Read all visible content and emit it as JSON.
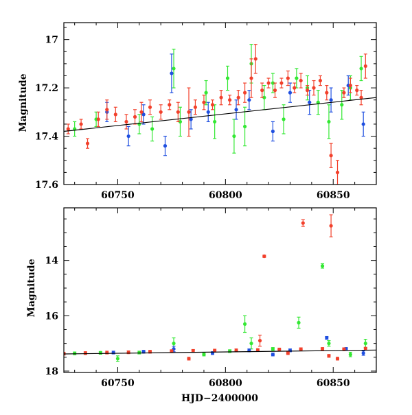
{
  "colors": {
    "green": "#33e833",
    "blue": "#1f4fe0",
    "red": "#f2402b",
    "model": "#000000"
  },
  "chart_data": [
    {
      "type": "scatter",
      "panel": "top",
      "xlabel": "",
      "ylabel": "Magnitude",
      "xlim": [
        60725,
        60870
      ],
      "ylim": [
        17.6,
        16.93
      ],
      "y_inverted": true,
      "x_ticks": [
        60750,
        60800,
        60850
      ],
      "y_ticks": [
        17.0,
        17.2,
        17.4,
        17.6
      ],
      "x_tick_labels": [
        "60750",
        "60800",
        "60850"
      ],
      "y_tick_labels": [
        "17",
        "17.2",
        "17.4",
        "17.6"
      ],
      "model_line": {
        "x": [
          60725,
          60870
        ],
        "y": [
          17.38,
          17.24
        ]
      },
      "series": [
        {
          "color": "red",
          "points": [
            [
              60727,
              17.37,
              0.02
            ],
            [
              60733,
              17.35,
              0.02
            ],
            [
              60736,
              17.43,
              0.02
            ],
            [
              60741,
              17.33,
              0.03
            ],
            [
              60745,
              17.29,
              0.04
            ],
            [
              60749,
              17.31,
              0.03
            ],
            [
              60754,
              17.34,
              0.03
            ],
            [
              60758,
              17.32,
              0.03
            ],
            [
              60761,
              17.3,
              0.04
            ],
            [
              60765,
              17.28,
              0.03
            ],
            [
              60770,
              17.3,
              0.03
            ],
            [
              60774,
              17.27,
              0.02
            ],
            [
              60778,
              17.3,
              0.04
            ],
            [
              60783,
              17.3,
              0.1
            ],
            [
              60786,
              17.28,
              0.03
            ],
            [
              60790,
              17.26,
              0.03
            ],
            [
              60794,
              17.27,
              0.02
            ],
            [
              60798,
              17.24,
              0.03
            ],
            [
              60802,
              17.25,
              0.02
            ],
            [
              60806,
              17.24,
              0.03
            ],
            [
              60809,
              17.22,
              0.04
            ],
            [
              60812,
              17.16,
              0.08
            ],
            [
              60814,
              17.08,
              0.06
            ],
            [
              60817,
              17.21,
              0.03
            ],
            [
              60820,
              17.18,
              0.02
            ],
            [
              60823,
              17.21,
              0.03
            ],
            [
              60826,
              17.18,
              0.02
            ],
            [
              60829,
              17.16,
              0.03
            ],
            [
              60832,
              17.2,
              0.02
            ],
            [
              60835,
              17.17,
              0.03
            ],
            [
              60838,
              17.21,
              0.02
            ],
            [
              60841,
              17.2,
              0.03
            ],
            [
              60844,
              17.17,
              0.02
            ],
            [
              60847,
              17.22,
              0.03
            ],
            [
              60849,
              17.48,
              0.05
            ],
            [
              60852,
              17.55,
              0.05
            ],
            [
              60855,
              17.22,
              0.02
            ],
            [
              60858,
              17.19,
              0.03
            ],
            [
              60861,
              17.21,
              0.02
            ],
            [
              60863,
              17.24,
              0.03
            ],
            [
              60865,
              17.11,
              0.05
            ]
          ]
        },
        {
          "color": "green",
          "points": [
            [
              60730,
              17.37,
              0.03
            ],
            [
              60740,
              17.33,
              0.03
            ],
            [
              60760,
              17.35,
              0.04
            ],
            [
              60766,
              17.37,
              0.05
            ],
            [
              60776,
              17.12,
              0.08
            ],
            [
              60779,
              17.34,
              0.06
            ],
            [
              60791,
              17.22,
              0.05
            ],
            [
              60795,
              17.34,
              0.07
            ],
            [
              60801,
              17.16,
              0.05
            ],
            [
              60804,
              17.4,
              0.07
            ],
            [
              60809,
              17.36,
              0.08
            ],
            [
              60812,
              17.1,
              0.08
            ],
            [
              60818,
              17.24,
              0.05
            ],
            [
              60822,
              17.18,
              0.04
            ],
            [
              60827,
              17.33,
              0.06
            ],
            [
              60833,
              17.16,
              0.04
            ],
            [
              60838,
              17.2,
              0.05
            ],
            [
              60843,
              17.26,
              0.05
            ],
            [
              60848,
              17.34,
              0.07
            ],
            [
              60854,
              17.27,
              0.06
            ],
            [
              60858,
              17.2,
              0.05
            ],
            [
              60863,
              17.12,
              0.05
            ]
          ]
        },
        {
          "color": "blue",
          "points": [
            [
              60745,
              17.3,
              0.04
            ],
            [
              60755,
              17.4,
              0.04
            ],
            [
              60762,
              17.31,
              0.04
            ],
            [
              60772,
              17.44,
              0.04
            ],
            [
              60775,
              17.14,
              0.08
            ],
            [
              60784,
              17.33,
              0.04
            ],
            [
              60792,
              17.3,
              0.04
            ],
            [
              60805,
              17.29,
              0.04
            ],
            [
              60811,
              17.25,
              0.04
            ],
            [
              60822,
              17.38,
              0.04
            ],
            [
              60830,
              17.22,
              0.04
            ],
            [
              60839,
              17.26,
              0.05
            ],
            [
              60849,
              17.25,
              0.05
            ],
            [
              60857,
              17.19,
              0.04
            ],
            [
              60864,
              17.35,
              0.05
            ]
          ]
        }
      ]
    },
    {
      "type": "scatter",
      "panel": "bottom",
      "xlabel": "HJD−2400000",
      "ylabel": "Magnitude",
      "xlim": [
        60725,
        60870
      ],
      "ylim": [
        18.05,
        12.1
      ],
      "y_inverted": true,
      "x_ticks": [
        60750,
        60800,
        60850
      ],
      "y_ticks": [
        14,
        16,
        18
      ],
      "x_tick_labels": [
        "60750",
        "60800",
        "60850"
      ],
      "y_tick_labels": [
        "14",
        "16",
        "18"
      ],
      "model_line": {
        "x": [
          60725,
          60870
        ],
        "y": [
          17.38,
          17.24
        ]
      },
      "series": [
        {
          "color": "red",
          "points": [
            [
              60725,
              17.37,
              0.05
            ],
            [
              60735,
              17.35,
              0.05
            ],
            [
              60745,
              17.33,
              0.05
            ],
            [
              60755,
              17.32,
              0.05
            ],
            [
              60765,
              17.3,
              0.05
            ],
            [
              60775,
              17.28,
              0.05
            ],
            [
              60785,
              17.27,
              0.05
            ],
            [
              60795,
              17.26,
              0.05
            ],
            [
              60805,
              17.25,
              0.05
            ],
            [
              60815,
              17.24,
              0.05
            ],
            [
              60825,
              17.22,
              0.05
            ],
            [
              60835,
              17.21,
              0.05
            ],
            [
              60845,
              17.2,
              0.05
            ],
            [
              60855,
              17.21,
              0.05
            ],
            [
              60865,
              17.19,
              0.05
            ],
            [
              60818,
              13.85,
              0.04
            ],
            [
              60836,
              12.65,
              0.12
            ],
            [
              60849,
              12.75,
              0.4
            ],
            [
              60852,
              17.55,
              0.05
            ],
            [
              60848,
              17.45,
              0.05
            ],
            [
              60783,
              17.55,
              0.05
            ],
            [
              60816,
              16.9,
              0.2
            ],
            [
              60829,
              17.35,
              0.05
            ]
          ]
        },
        {
          "color": "green",
          "points": [
            [
              60730,
              17.36,
              0.05
            ],
            [
              60742,
              17.34,
              0.05
            ],
            [
              60750,
              17.55,
              0.1
            ],
            [
              60760,
              17.33,
              0.05
            ],
            [
              60776,
              17.0,
              0.2
            ],
            [
              60790,
              17.4,
              0.05
            ],
            [
              60802,
              17.28,
              0.05
            ],
            [
              60809,
              16.3,
              0.3
            ],
            [
              60812,
              17.0,
              0.2
            ],
            [
              60822,
              17.2,
              0.05
            ],
            [
              60834,
              16.25,
              0.2
            ],
            [
              60845,
              14.2,
              0.08
            ],
            [
              60848,
              17.0,
              0.1
            ],
            [
              60858,
              17.4,
              0.08
            ],
            [
              60865,
              17.0,
              0.15
            ]
          ]
        },
        {
          "color": "blue",
          "points": [
            [
              60748,
              17.33,
              0.05
            ],
            [
              60762,
              17.3,
              0.05
            ],
            [
              60776,
              17.2,
              0.1
            ],
            [
              60794,
              17.35,
              0.05
            ],
            [
              60811,
              17.25,
              0.05
            ],
            [
              60822,
              17.4,
              0.05
            ],
            [
              60830,
              17.25,
              0.05
            ],
            [
              60847,
              16.8,
              0.05
            ],
            [
              60856,
              17.2,
              0.05
            ],
            [
              60864,
              17.35,
              0.08
            ]
          ]
        }
      ]
    }
  ]
}
